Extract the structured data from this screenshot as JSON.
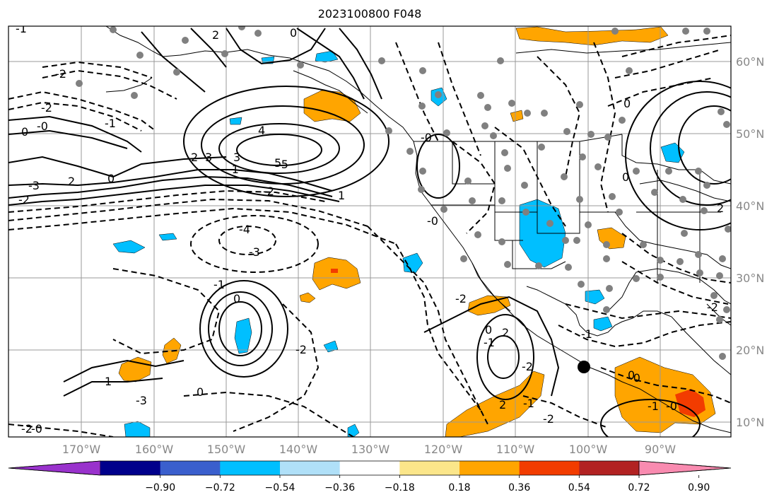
{
  "title": "2023100800 F048",
  "map": {
    "lon_labels": [
      "170°W",
      "160°W",
      "150°W",
      "140°W",
      "130°W",
      "120°W",
      "110°W",
      "100°W",
      "90°W"
    ],
    "lat_labels": [
      "60°N",
      "50°N",
      "40°N",
      "30°N",
      "20°N",
      "10°N"
    ],
    "grid": true,
    "grid_color": "#999999",
    "land_outline_color": "#000000",
    "contour_color": "#000000",
    "station_color": "#808080",
    "contour_labels": [
      "-1",
      "2",
      "0",
      "-2",
      "-2",
      "0",
      "-0",
      "-1",
      "4",
      "3",
      "-2",
      "2",
      "2",
      "-2",
      "5",
      "-3",
      "-1",
      "-5",
      "3",
      "0",
      "-4",
      "-3",
      "-1",
      "0",
      "-3",
      "1",
      "0",
      "-2",
      "1",
      "-0",
      "-2",
      "0",
      "2",
      "-1",
      "-2",
      "0",
      "-1",
      "2",
      "-1",
      "-2",
      "-0",
      "-2",
      "2",
      "0",
      "0",
      "-0",
      "-1",
      "-0",
      "-2",
      "-0"
    ]
  },
  "colorbar": {
    "tick_labels": [
      "−0.90",
      "−0.72",
      "−0.54",
      "−0.36",
      "−0.18",
      "0.18",
      "0.36",
      "0.54",
      "0.72",
      "0.90"
    ],
    "colors": [
      "#9932cc",
      "#00008b",
      "#3a5fcd",
      "#00bfff",
      "#b0e0f8",
      "#ffffff",
      "#fbe68a",
      "#ffa500",
      "#f23c00",
      "#b22222",
      "#f98bb0"
    ]
  },
  "shading_colors": {
    "positive_mid": "#ffa500",
    "positive_high": "#f23c00",
    "negative_mid": "#00bfff"
  }
}
